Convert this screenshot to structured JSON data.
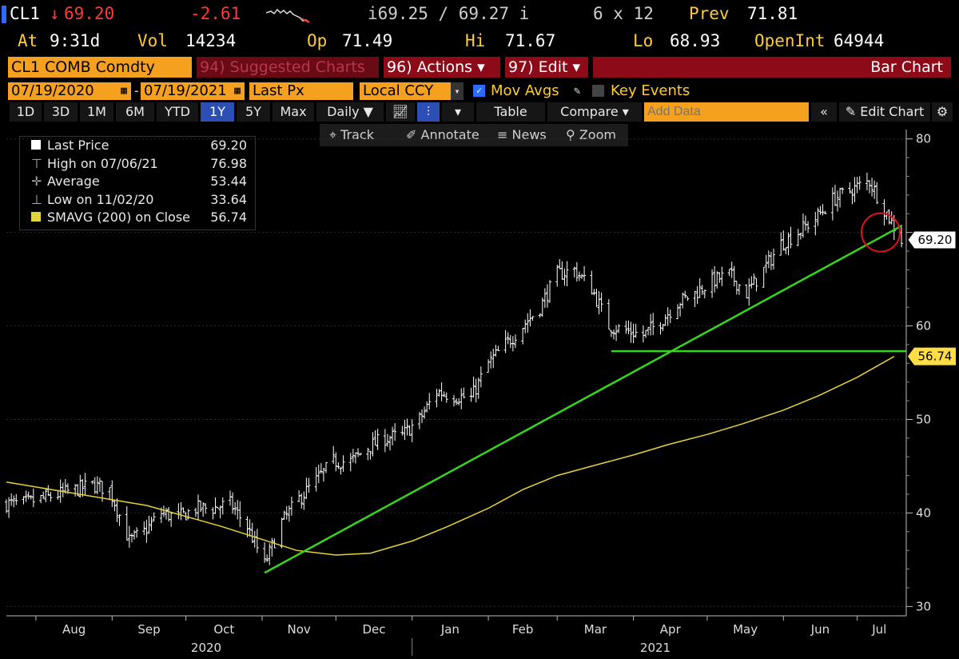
{
  "header": {
    "ticker": "CL1",
    "last": "69.20",
    "arrow": "↓",
    "change": "-2.61",
    "bid_ask": "i69.25 / 69.27 i",
    "size": "6 x 12",
    "prev_label": "Prev",
    "prev": "71.81",
    "at_label": "At",
    "at_time": "9:31d",
    "vol_label": "Vol",
    "vol": "14234",
    "op_label": "Op",
    "op": "71.49",
    "hi_label": "Hi",
    "hi": "71.67",
    "lo_label": "Lo",
    "lo": "68.93",
    "oi_label": "OpenInt",
    "oi": "64944"
  },
  "bar1": {
    "security": "CL1 COMB Comdty",
    "suggested": "94) Suggested Charts",
    "actions": "96) Actions ▾",
    "edit": "97) Edit ▾",
    "chart_type": "Bar Chart"
  },
  "bar2": {
    "start_date": "07/19/2020",
    "end_date": "07/19/2021",
    "field": "Last Px",
    "currency": "Local CCY",
    "mov_avgs": "Mov Avgs",
    "key_events": "Key Events"
  },
  "toolbar": {
    "periods": [
      "1D",
      "3D",
      "1M",
      "6M",
      "YTD",
      "1Y",
      "5Y",
      "Max"
    ],
    "selected": "1Y",
    "frequency": "Daily ▼",
    "table": "Table",
    "compare": "Compare ▾",
    "add_data_placeholder": "Add Data",
    "edit_chart": "Edit Chart"
  },
  "subtools": {
    "track": "Track",
    "annotate": "Annotate",
    "news": "News",
    "zoom": "Zoom"
  },
  "legend": [
    {
      "label": "Last Price",
      "value": "69.20"
    },
    {
      "label": "High on 07/06/21",
      "value": "76.98"
    },
    {
      "label": "Average",
      "value": "53.44"
    },
    {
      "label": "Low on 11/02/20",
      "value": "33.64"
    },
    {
      "label": "SMAVG (200)  on Close",
      "value": "56.74"
    }
  ],
  "colors": {
    "price": "#ffffff",
    "sma": "#e8d23a",
    "trend": "#37d61e",
    "highlight": "#e0121b",
    "orange": "#f5a01e",
    "maroon": "#8d0b19"
  },
  "chart_data": {
    "type": "bar",
    "x_start": "2020-07-20",
    "x_end": "2021-07-19",
    "ylim": [
      29,
      81
    ],
    "yticks": [
      30,
      40,
      50,
      60,
      70,
      80
    ],
    "ytick_labels": [
      "30",
      "40",
      "50",
      "60",
      "",
      "80"
    ],
    "month_labels": [
      "Aug",
      "Sep",
      "Oct",
      "Nov",
      "Dec",
      "Jan",
      "Feb",
      "Mar",
      "Apr",
      "May",
      "Jun",
      "Jul"
    ],
    "year_labels": [
      "2020",
      "2021"
    ],
    "last_price_tag": "69.20",
    "sma_tag": "56.74",
    "price_points": [
      [
        "2020-07-20",
        41
      ],
      [
        "2020-07-27",
        41
      ],
      [
        "2020-08-03",
        41.5
      ],
      [
        "2020-08-10",
        42
      ],
      [
        "2020-08-17",
        42.5
      ],
      [
        "2020-08-24",
        43
      ],
      [
        "2020-08-31",
        42.5
      ],
      [
        "2020-09-08",
        37
      ],
      [
        "2020-09-14",
        38
      ],
      [
        "2020-09-21",
        40
      ],
      [
        "2020-09-28",
        39.5
      ],
      [
        "2020-10-05",
        40.5
      ],
      [
        "2020-10-12",
        40.5
      ],
      [
        "2020-10-19",
        41
      ],
      [
        "2020-10-26",
        38.5
      ],
      [
        "2020-11-02",
        34.5
      ],
      [
        "2020-11-09",
        39
      ],
      [
        "2020-11-16",
        41.5
      ],
      [
        "2020-11-23",
        43.5
      ],
      [
        "2020-11-30",
        45.5
      ],
      [
        "2020-12-07",
        45.5
      ],
      [
        "2020-12-14",
        47
      ],
      [
        "2020-12-21",
        48
      ],
      [
        "2020-12-28",
        48.3
      ],
      [
        "2021-01-04",
        50
      ],
      [
        "2021-01-11",
        53
      ],
      [
        "2021-01-18",
        52.5
      ],
      [
        "2021-01-25",
        52.3
      ],
      [
        "2021-02-01",
        56
      ],
      [
        "2021-02-08",
        58
      ],
      [
        "2021-02-15",
        60
      ],
      [
        "2021-02-22",
        62
      ],
      [
        "2021-03-01",
        65.5
      ],
      [
        "2021-03-08",
        66
      ],
      [
        "2021-03-15",
        64
      ],
      [
        "2021-03-22",
        60
      ],
      [
        "2021-03-29",
        59.5
      ],
      [
        "2021-04-05",
        59
      ],
      [
        "2021-04-12",
        60.5
      ],
      [
        "2021-04-19",
        62.5
      ],
      [
        "2021-04-26",
        63.5
      ],
      [
        "2021-05-03",
        64.8
      ],
      [
        "2021-05-10",
        65.5
      ],
      [
        "2021-05-17",
        63.5
      ],
      [
        "2021-05-24",
        66
      ],
      [
        "2021-05-31",
        68.8
      ],
      [
        "2021-06-07",
        70
      ],
      [
        "2021-06-14",
        71.5
      ],
      [
        "2021-06-21",
        73.5
      ],
      [
        "2021-06-28",
        74.5
      ],
      [
        "2021-07-06",
        75.5
      ],
      [
        "2021-07-12",
        72.5
      ],
      [
        "2021-07-19",
        69.2
      ]
    ],
    "sma_points": [
      [
        "2020-07-20",
        43.3
      ],
      [
        "2020-09-15",
        40.8
      ],
      [
        "2020-10-15",
        38.6
      ],
      [
        "2020-11-15",
        36
      ],
      [
        "2020-12-01",
        35.5
      ],
      [
        "2020-12-15",
        35.7
      ],
      [
        "2021-01-01",
        37
      ],
      [
        "2021-01-15",
        38.5
      ],
      [
        "2021-02-01",
        40.5
      ],
      [
        "2021-02-15",
        42.5
      ],
      [
        "2021-03-01",
        44
      ],
      [
        "2021-03-15",
        45
      ],
      [
        "2021-04-01",
        46.2
      ],
      [
        "2021-04-15",
        47.3
      ],
      [
        "2021-05-01",
        48.4
      ],
      [
        "2021-05-15",
        49.5
      ],
      [
        "2021-06-01",
        51
      ],
      [
        "2021-06-15",
        52.5
      ],
      [
        "2021-07-01",
        54.5
      ],
      [
        "2021-07-16",
        56.74
      ]
    ],
    "trend_line": [
      [
        "2020-11-02",
        33.6
      ],
      [
        "2021-07-19",
        70.7
      ]
    ],
    "support_line": {
      "y": 57.3,
      "from": "2021-03-23",
      "to": "2021-07-19"
    },
    "highlight": {
      "date": "2021-07-19",
      "y": 70
    }
  }
}
